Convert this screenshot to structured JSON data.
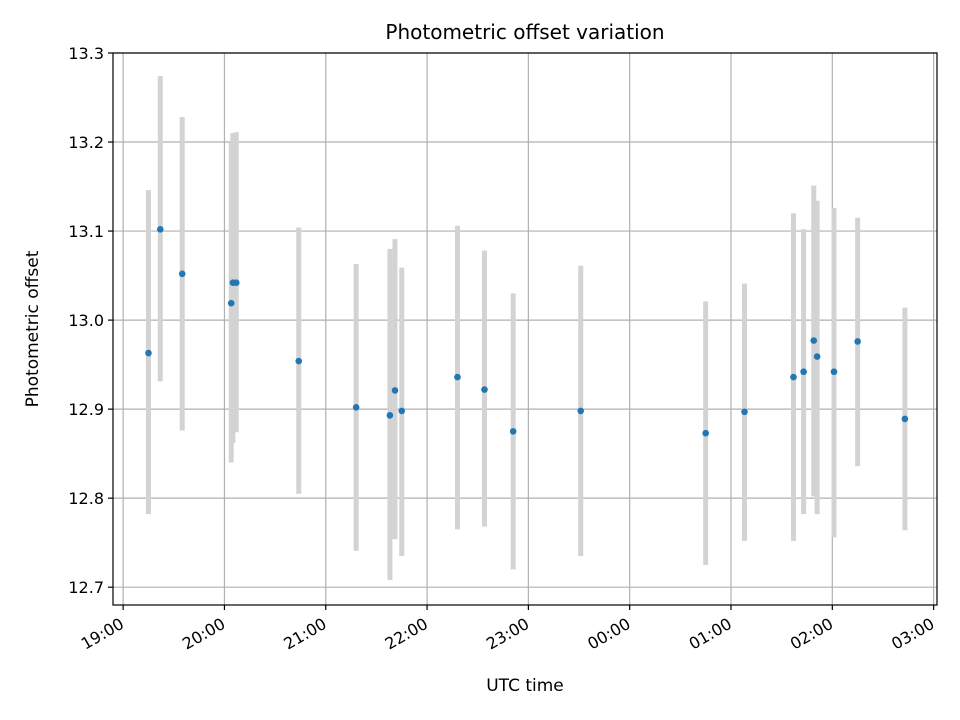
{
  "chart_data": {
    "type": "scatter",
    "title": "Photometric offset variation",
    "xlabel": "UTC time",
    "ylabel": "Photometric offset",
    "x_unit": "hours_since_19:00",
    "xlim": [
      "18:54",
      "03:02"
    ],
    "ylim": [
      12.68,
      13.3
    ],
    "x_ticks": [
      "19:00",
      "20:00",
      "21:00",
      "22:00",
      "23:00",
      "00:00",
      "01:00",
      "02:00",
      "03:00"
    ],
    "y_ticks": [
      "12.7",
      "12.8",
      "12.9",
      "13.0",
      "13.1",
      "13.2",
      "13.3"
    ],
    "grid": true,
    "colors": {
      "point": "#1f77b4",
      "errorbar": "#d3d3d3",
      "grid": "#b0b0b0"
    },
    "points": [
      {
        "x": "19:15",
        "y": 12.963,
        "ylow": 12.782,
        "yhigh": 13.146
      },
      {
        "x": "19:22",
        "y": 13.102,
        "ylow": 12.931,
        "yhigh": 13.274
      },
      {
        "x": "19:35",
        "y": 13.052,
        "ylow": 12.876,
        "yhigh": 13.228
      },
      {
        "x": "20:04",
        "y": 13.019,
        "ylow": 12.84,
        "yhigh": 13.199
      },
      {
        "x": "20:05",
        "y": 13.042,
        "ylow": 12.862,
        "yhigh": 13.21
      },
      {
        "x": "20:07",
        "y": 13.042,
        "ylow": 12.874,
        "yhigh": 13.211
      },
      {
        "x": "20:44",
        "y": 12.954,
        "ylow": 12.805,
        "yhigh": 13.104
      },
      {
        "x": "21:18",
        "y": 12.902,
        "ylow": 12.741,
        "yhigh": 13.063
      },
      {
        "x": "21:38",
        "y": 12.893,
        "ylow": 12.708,
        "yhigh": 13.08
      },
      {
        "x": "21:41",
        "y": 12.921,
        "ylow": 12.754,
        "yhigh": 13.091
      },
      {
        "x": "21:45",
        "y": 12.898,
        "ylow": 12.735,
        "yhigh": 13.059
      },
      {
        "x": "22:18",
        "y": 12.936,
        "ylow": 12.765,
        "yhigh": 13.106
      },
      {
        "x": "22:34",
        "y": 12.922,
        "ylow": 12.768,
        "yhigh": 13.078
      },
      {
        "x": "22:51",
        "y": 12.875,
        "ylow": 12.72,
        "yhigh": 13.03
      },
      {
        "x": "23:31",
        "y": 12.898,
        "ylow": 12.735,
        "yhigh": 13.061
      },
      {
        "x": "00:45",
        "y": 12.873,
        "ylow": 12.725,
        "yhigh": 13.021
      },
      {
        "x": "01:08",
        "y": 12.897,
        "ylow": 12.752,
        "yhigh": 13.041
      },
      {
        "x": "01:37",
        "y": 12.936,
        "ylow": 12.752,
        "yhigh": 13.12
      },
      {
        "x": "01:43",
        "y": 12.942,
        "ylow": 12.782,
        "yhigh": 13.102
      },
      {
        "x": "01:49",
        "y": 12.977,
        "ylow": 12.802,
        "yhigh": 13.151
      },
      {
        "x": "01:51",
        "y": 12.959,
        "ylow": 12.782,
        "yhigh": 13.134
      },
      {
        "x": "02:01",
        "y": 12.942,
        "ylow": 12.756,
        "yhigh": 13.126
      },
      {
        "x": "02:15",
        "y": 12.976,
        "ylow": 12.836,
        "yhigh": 13.115
      },
      {
        "x": "02:43",
        "y": 12.889,
        "ylow": 12.764,
        "yhigh": 13.014
      }
    ]
  }
}
